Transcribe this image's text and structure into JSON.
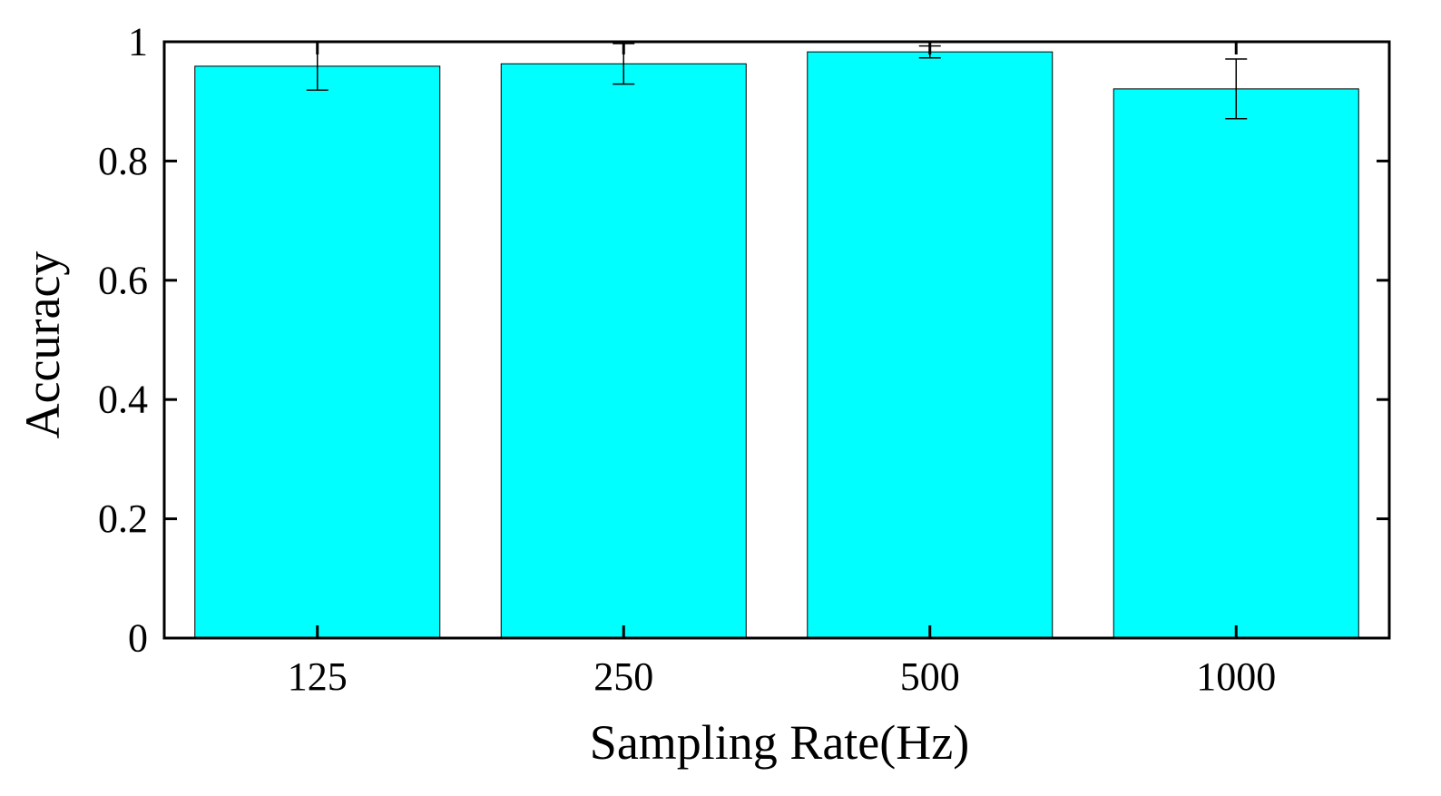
{
  "chart_data": {
    "type": "bar",
    "title": "",
    "xlabel": "Sampling Rate(Hz)",
    "ylabel": "Accuracy",
    "categories": [
      "125",
      "250",
      "500",
      "1000"
    ],
    "values": [
      0.959,
      0.963,
      0.983,
      0.921
    ],
    "error_upper": [
      0.999,
      0.997,
      0.993,
      0.971
    ],
    "error_lower": [
      0.919,
      0.929,
      0.973,
      0.871
    ],
    "ylim": [
      0,
      1
    ],
    "yticks": [
      "0",
      "0.2",
      "0.4",
      "0.6",
      "0.8",
      "1"
    ],
    "grid": false,
    "legend": "none",
    "bar_color": "#00FFFF"
  }
}
